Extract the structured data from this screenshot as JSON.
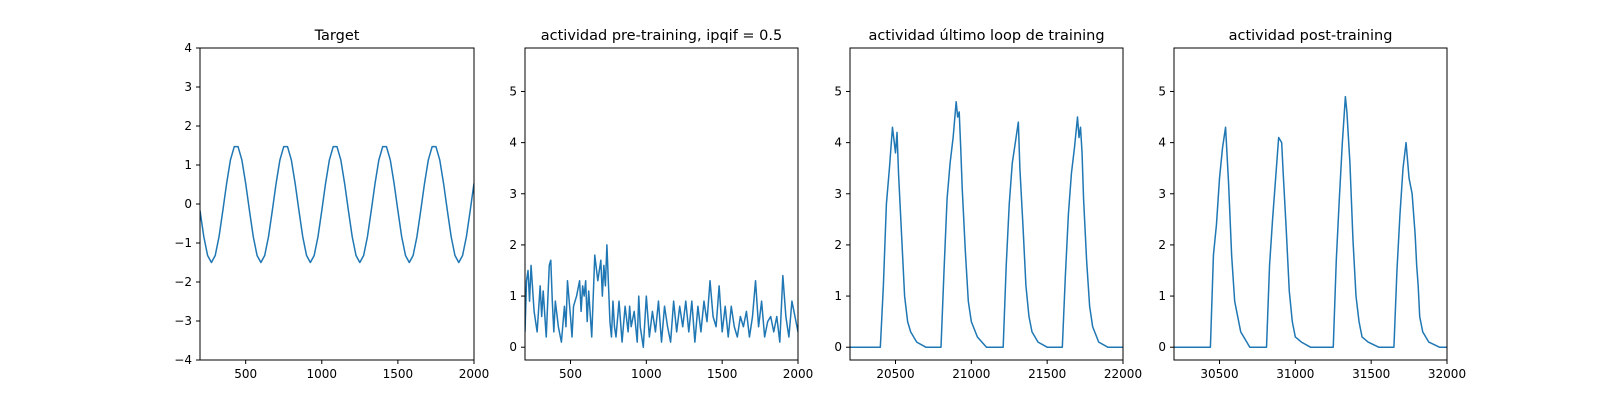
{
  "figure": {
    "background": "#ffffff",
    "line_color": "#1f77b4"
  },
  "chart_data": [
    {
      "type": "line",
      "title": "Target",
      "xlabel": "",
      "ylabel": "",
      "xlim": [
        200,
        2000
      ],
      "ylim": [
        -4,
        4
      ],
      "xticks": [
        500,
        1000,
        1500,
        2000
      ],
      "yticks": [
        -4,
        -3,
        -2,
        -1,
        0,
        1,
        2,
        3,
        4
      ],
      "xtick_labels": [
        "500",
        "1000",
        "1500",
        "2000"
      ],
      "ytick_labels": [
        "−4",
        "−3",
        "−2",
        "−1",
        "0",
        "1",
        "2",
        "3",
        "4"
      ],
      "grid": false,
      "series": [
        {
          "x": [
            200,
            225,
            250,
            275,
            300,
            325,
            350,
            375,
            400,
            425,
            450,
            475,
            500,
            525,
            550,
            575,
            600,
            625,
            650,
            675,
            700,
            725,
            750,
            775,
            800,
            825,
            850,
            875,
            900,
            925,
            950,
            975,
            1000,
            1025,
            1050,
            1075,
            1100,
            1125,
            1150,
            1175,
            1200,
            1225,
            1250,
            1275,
            1300,
            1325,
            1350,
            1375,
            1400,
            1425,
            1450,
            1475,
            1500,
            1525,
            1550,
            1575,
            1600,
            1625,
            1650,
            1675,
            1700,
            1725,
            1750,
            1775,
            1800,
            1825,
            1850,
            1875,
            1900,
            1925,
            1950,
            1975,
            2000
          ],
          "y": [
            -0.17,
            -0.84,
            -1.32,
            -1.5,
            -1.32,
            -0.84,
            -0.17,
            0.53,
            1.13,
            1.47,
            1.47,
            1.13,
            0.53,
            -0.17,
            -0.84,
            -1.32,
            -1.5,
            -1.32,
            -0.84,
            -0.17,
            0.53,
            1.13,
            1.47,
            1.47,
            1.13,
            0.53,
            -0.17,
            -0.84,
            -1.32,
            -1.5,
            -1.32,
            -0.84,
            -0.17,
            0.53,
            1.13,
            1.47,
            1.47,
            1.13,
            0.53,
            -0.17,
            -0.84,
            -1.32,
            -1.5,
            -1.32,
            -0.84,
            -0.17,
            0.53,
            1.13,
            1.47,
            1.47,
            1.13,
            0.53,
            -0.17,
            -0.84,
            -1.32,
            -1.5,
            -1.32,
            -0.84,
            -0.17,
            0.53,
            1.13,
            1.47,
            1.47,
            1.13,
            0.53,
            -0.17,
            -0.84,
            -1.32,
            -1.5,
            -1.32,
            -0.84,
            -0.17,
            0.53
          ]
        }
      ]
    },
    {
      "type": "line",
      "title": "actividad pre-training, ipqif = 0.5",
      "xlabel": "",
      "ylabel": "",
      "xlim": [
        200,
        2000
      ],
      "ylim": [
        -0.25,
        5.85
      ],
      "xticks": [
        500,
        1000,
        1500,
        2000
      ],
      "yticks": [
        0,
        1,
        2,
        3,
        4,
        5
      ],
      "xtick_labels": [
        "500",
        "1000",
        "1500",
        "2000"
      ],
      "ytick_labels": [
        "0",
        "1",
        "2",
        "3",
        "4",
        "5"
      ],
      "grid": false,
      "series": [
        {
          "x": [
            200,
            210,
            220,
            230,
            240,
            260,
            280,
            300,
            310,
            320,
            340,
            360,
            370,
            380,
            390,
            400,
            420,
            440,
            460,
            470,
            480,
            500,
            510,
            520,
            540,
            560,
            570,
            580,
            590,
            600,
            610,
            620,
            640,
            660,
            680,
            700,
            710,
            720,
            730,
            740,
            760,
            770,
            780,
            790,
            800,
            820,
            840,
            860,
            880,
            890,
            900,
            920,
            940,
            950,
            960,
            980,
            1000,
            1020,
            1040,
            1060,
            1080,
            1100,
            1120,
            1140,
            1160,
            1180,
            1200,
            1220,
            1240,
            1260,
            1280,
            1300,
            1320,
            1340,
            1360,
            1380,
            1400,
            1420,
            1440,
            1460,
            1480,
            1500,
            1520,
            1540,
            1560,
            1580,
            1600,
            1620,
            1640,
            1660,
            1680,
            1700,
            1720,
            1740,
            1760,
            1780,
            1800,
            1820,
            1840,
            1860,
            1880,
            1900,
            1920,
            1940,
            1960,
            1980,
            2000
          ],
          "y": [
            0.3,
            1.3,
            1.5,
            0.9,
            1.6,
            0.7,
            0.3,
            1.2,
            0.6,
            1.1,
            0.2,
            1.6,
            1.7,
            0.9,
            0.3,
            0.9,
            0.4,
            0.1,
            0.8,
            0.4,
            1.3,
            0.6,
            0.2,
            0.8,
            1.0,
            1.3,
            0.7,
            1.2,
            1.0,
            1.3,
            0.5,
            1.1,
            0.2,
            1.8,
            1.3,
            1.7,
            1.0,
            1.6,
            1.2,
            2.0,
            0.5,
            0.2,
            0.9,
            0.4,
            0.2,
            0.9,
            0.1,
            0.8,
            0.3,
            0.8,
            0.4,
            0.7,
            0.1,
            1.0,
            0.4,
            0.0,
            1.0,
            0.2,
            0.7,
            0.3,
            0.9,
            0.1,
            0.8,
            0.4,
            0.1,
            0.9,
            0.3,
            0.8,
            0.4,
            0.9,
            0.3,
            0.9,
            0.1,
            0.8,
            0.3,
            0.9,
            0.5,
            1.3,
            0.6,
            0.4,
            1.2,
            0.3,
            0.8,
            0.2,
            0.8,
            0.4,
            0.2,
            0.6,
            0.4,
            0.7,
            0.2,
            0.6,
            1.3,
            0.4,
            0.9,
            0.2,
            0.5,
            0.6,
            0.3,
            0.6,
            0.1,
            1.4,
            0.6,
            0.2,
            0.9,
            0.6,
            0.3
          ]
        }
      ]
    },
    {
      "type": "line",
      "title": "actividad último loop de training",
      "xlabel": "",
      "ylabel": "",
      "xlim": [
        20200,
        22000
      ],
      "ylim": [
        -0.25,
        5.85
      ],
      "xticks": [
        20500,
        21000,
        21500,
        22000
      ],
      "yticks": [
        0,
        1,
        2,
        3,
        4,
        5
      ],
      "xtick_labels": [
        "20500",
        "21000",
        "21500",
        "22000"
      ],
      "ytick_labels": [
        "0",
        "1",
        "2",
        "3",
        "4",
        "5"
      ],
      "grid": false,
      "series": [
        {
          "x": [
            20200,
            20400,
            20420,
            20440,
            20460,
            20480,
            20500,
            20510,
            20520,
            20540,
            20560,
            20580,
            20600,
            20640,
            20700,
            20800,
            20820,
            20840,
            20860,
            20880,
            20900,
            20910,
            20920,
            20930,
            20940,
            20960,
            20980,
            21000,
            21040,
            21100,
            21210,
            21230,
            21250,
            21270,
            21290,
            21300,
            21310,
            21320,
            21340,
            21360,
            21380,
            21400,
            21440,
            21500,
            21600,
            21620,
            21640,
            21660,
            21680,
            21700,
            21710,
            21720,
            21730,
            21740,
            21760,
            21780,
            21800,
            21840,
            21900,
            22000
          ],
          "y": [
            0.0,
            0.0,
            1.2,
            2.8,
            3.5,
            4.3,
            3.8,
            4.2,
            3.4,
            2.2,
            1.0,
            0.5,
            0.3,
            0.1,
            0.0,
            0.0,
            1.5,
            2.9,
            3.6,
            4.1,
            4.8,
            4.5,
            4.6,
            3.9,
            3.1,
            1.9,
            0.9,
            0.5,
            0.2,
            0.0,
            0.0,
            1.6,
            2.8,
            3.6,
            4.0,
            4.2,
            4.4,
            3.5,
            2.4,
            1.2,
            0.6,
            0.3,
            0.1,
            0.0,
            0.0,
            1.4,
            2.6,
            3.4,
            3.9,
            4.5,
            4.1,
            4.3,
            3.8,
            2.9,
            1.7,
            0.8,
            0.4,
            0.1,
            0.0,
            0.0
          ]
        }
      ]
    },
    {
      "type": "line",
      "title": "actividad post-training",
      "xlabel": "",
      "ylabel": "",
      "xlim": [
        30200,
        32000
      ],
      "ylim": [
        -0.25,
        5.85
      ],
      "xticks": [
        30500,
        31000,
        31500,
        32000
      ],
      "yticks": [
        0,
        1,
        2,
        3,
        4,
        5
      ],
      "xtick_labels": [
        "30500",
        "31000",
        "31500",
        "32000"
      ],
      "ytick_labels": [
        "0",
        "1",
        "2",
        "3",
        "4",
        "5"
      ],
      "grid": false,
      "series": [
        {
          "x": [
            30200,
            30440,
            30460,
            30480,
            30500,
            30520,
            30540,
            30560,
            30580,
            30600,
            30640,
            30700,
            30810,
            30830,
            30850,
            30870,
            30890,
            30910,
            30920,
            30940,
            30960,
            30980,
            31000,
            31040,
            31100,
            31250,
            31270,
            31290,
            31310,
            31330,
            31340,
            31360,
            31380,
            31400,
            31420,
            31440,
            31480,
            31550,
            31650,
            31670,
            31690,
            31710,
            31730,
            31750,
            31770,
            31790,
            31800,
            31810,
            31820,
            31840,
            31880,
            31950,
            32000
          ],
          "y": [
            0.0,
            0.0,
            1.8,
            2.4,
            3.3,
            3.9,
            4.3,
            3.2,
            1.8,
            0.9,
            0.3,
            0.0,
            0.0,
            1.6,
            2.5,
            3.3,
            4.1,
            4.0,
            3.4,
            2.3,
            1.1,
            0.5,
            0.2,
            0.1,
            0.0,
            0.0,
            1.7,
            2.9,
            4.0,
            4.9,
            4.6,
            3.6,
            2.1,
            1.0,
            0.5,
            0.2,
            0.1,
            0.0,
            0.0,
            1.5,
            2.6,
            3.5,
            4.0,
            3.3,
            3.0,
            2.2,
            1.6,
            1.2,
            0.6,
            0.3,
            0.1,
            0.0,
            0.0
          ]
        }
      ]
    }
  ]
}
